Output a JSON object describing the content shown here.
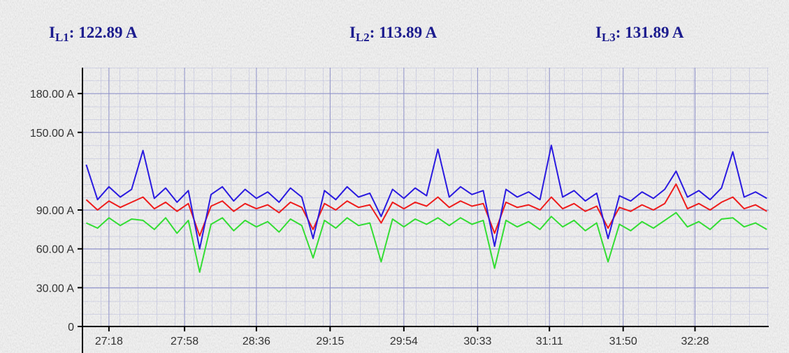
{
  "chart_data": {
    "type": "line",
    "readings": [
      {
        "symbol": "I",
        "sub": "L1",
        "text": ": 122.89 A"
      },
      {
        "symbol": "I",
        "sub": "L2",
        "text": ": 113.89 A"
      },
      {
        "symbol": "I",
        "sub": "L3",
        "text": ": 131.89 A"
      }
    ],
    "x": [
      1626,
      1632,
      1638,
      1644,
      1650,
      1656,
      1662,
      1668,
      1674,
      1680,
      1686,
      1692,
      1698,
      1704,
      1710,
      1716,
      1722,
      1728,
      1734,
      1740,
      1746,
      1752,
      1758,
      1764,
      1770,
      1776,
      1782,
      1788,
      1794,
      1800,
      1806,
      1812,
      1818,
      1824,
      1830,
      1836,
      1842,
      1848,
      1854,
      1860,
      1866,
      1872,
      1878,
      1884,
      1890,
      1896,
      1902,
      1908,
      1914,
      1920,
      1926,
      1932,
      1938,
      1944,
      1950,
      1956,
      1962,
      1968,
      1974,
      1980,
      1986
    ],
    "series": [
      {
        "name": "IL3",
        "color": "#33dd33",
        "values": [
          80,
          76,
          84,
          78,
          83,
          82,
          75,
          84,
          72,
          82,
          42,
          79,
          84,
          74,
          82,
          77,
          81,
          73,
          83,
          78,
          53,
          82,
          76,
          84,
          78,
          80,
          50,
          83,
          77,
          83,
          79,
          84,
          78,
          84,
          79,
          82,
          45,
          82,
          77,
          81,
          75,
          85,
          77,
          82,
          74,
          80,
          50,
          79,
          74,
          81,
          76,
          82,
          88,
          77,
          81,
          75,
          83,
          84,
          77,
          80,
          75
        ]
      },
      {
        "name": "IL2",
        "color": "#ee1c1c",
        "values": [
          98,
          90,
          97,
          92,
          96,
          100,
          91,
          96,
          89,
          95,
          70,
          93,
          97,
          89,
          95,
          91,
          94,
          88,
          96,
          92,
          75,
          95,
          90,
          97,
          92,
          94,
          80,
          96,
          91,
          96,
          93,
          100,
          92,
          97,
          93,
          95,
          72,
          96,
          92,
          94,
          90,
          100,
          91,
          95,
          89,
          93,
          76,
          92,
          89,
          94,
          90,
          95,
          110,
          91,
          95,
          90,
          96,
          100,
          91,
          94,
          89
        ]
      },
      {
        "name": "IL1",
        "color": "#2a1ae0",
        "values": [
          125,
          98,
          108,
          100,
          106,
          136,
          99,
          107,
          96,
          105,
          60,
          102,
          108,
          97,
          106,
          99,
          104,
          96,
          107,
          100,
          68,
          105,
          98,
          108,
          100,
          103,
          85,
          106,
          99,
          107,
          101,
          137,
          100,
          108,
          102,
          105,
          62,
          106,
          100,
          104,
          98,
          140,
          100,
          105,
          97,
          103,
          68,
          101,
          97,
          104,
          99,
          106,
          120,
          100,
          105,
          98,
          107,
          135,
          100,
          104,
          99
        ]
      }
    ],
    "xlim": [
      1624,
      1987
    ],
    "xticks": [
      {
        "value": 1638,
        "label": "27:18"
      },
      {
        "value": 1678,
        "label": "27:58"
      },
      {
        "value": 1716,
        "label": "28:36"
      },
      {
        "value": 1755,
        "label": "29:15"
      },
      {
        "value": 1794,
        "label": "29:54"
      },
      {
        "value": 1833,
        "label": "30:33"
      },
      {
        "value": 1871,
        "label": "31:11"
      },
      {
        "value": 1910,
        "label": "31:50"
      },
      {
        "value": 1948,
        "label": "32:28"
      }
    ],
    "ylim": [
      0,
      200
    ],
    "yticks": [
      0,
      {
        "value": 30,
        "label": "30.00 A"
      },
      {
        "value": 60,
        "label": "60.00 A"
      },
      {
        "value": 90,
        "label": "90.00 A"
      },
      {
        "value": 150,
        "label": "150.00 A"
      },
      {
        "value": 180,
        "label": "180.00 A"
      }
    ]
  }
}
